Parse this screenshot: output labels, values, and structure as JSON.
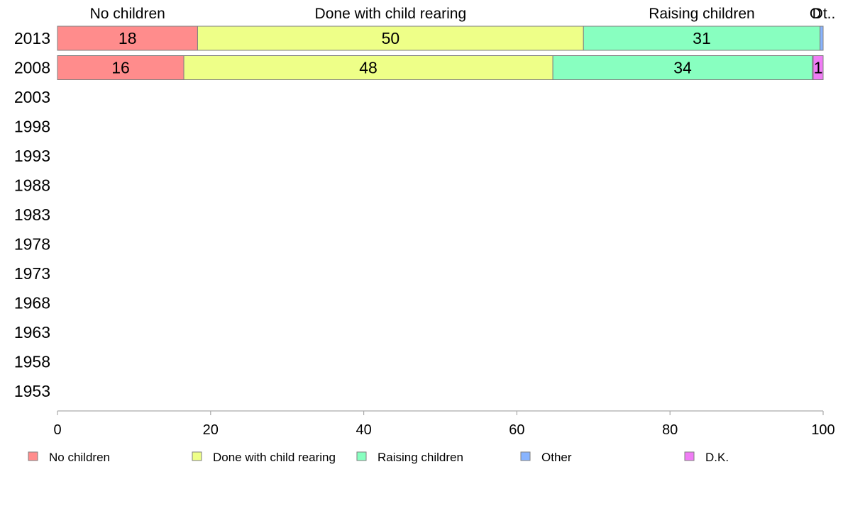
{
  "chart_data": {
    "type": "bar",
    "orientation": "horizontal",
    "stacked": true,
    "title": "",
    "xlabel": "",
    "ylabel": "",
    "xlim": [
      0,
      100
    ],
    "x_ticks": [
      0,
      20,
      40,
      60,
      80,
      100
    ],
    "categories": [
      "2013",
      "2008",
      "2003",
      "1998",
      "1993",
      "1988",
      "1983",
      "1978",
      "1973",
      "1968",
      "1963",
      "1958",
      "1953"
    ],
    "series": [
      {
        "name": "No children",
        "color": "#ff8c8c",
        "values": [
          18.3,
          16.5,
          null,
          null,
          null,
          null,
          null,
          null,
          null,
          null,
          null,
          null,
          null
        ],
        "labels": [
          "18",
          "16",
          "",
          "",
          "",
          "",
          "",
          "",
          "",
          "",
          "",
          "",
          ""
        ]
      },
      {
        "name": "Done with child rearing",
        "color": "#eeff88",
        "values": [
          50.4,
          48.2,
          null,
          null,
          null,
          null,
          null,
          null,
          null,
          null,
          null,
          null,
          null
        ],
        "labels": [
          "50",
          "48",
          "",
          "",
          "",
          "",
          "",
          "",
          "",
          "",
          "",
          "",
          ""
        ]
      },
      {
        "name": "Raising children",
        "color": "#88ffc0",
        "values": [
          30.9,
          33.9,
          null,
          null,
          null,
          null,
          null,
          null,
          null,
          null,
          null,
          null,
          null
        ],
        "labels": [
          "31",
          "34",
          "",
          "",
          "",
          "",
          "",
          "",
          "",
          "",
          "",
          "",
          ""
        ]
      },
      {
        "name": "Other",
        "color": "#88b4ff",
        "values": [
          0.4,
          0.1,
          null,
          null,
          null,
          null,
          null,
          null,
          null,
          null,
          null,
          null,
          null
        ],
        "labels": [
          "",
          "",
          "",
          "",
          "",
          "",
          "",
          "",
          "",
          "",
          "",
          "",
          ""
        ]
      },
      {
        "name": "D.K.",
        "color": "#f07cf5",
        "values": [
          0.0,
          1.3,
          null,
          null,
          null,
          null,
          null,
          null,
          null,
          null,
          null,
          null,
          null
        ],
        "labels": [
          "",
          "1",
          "",
          "",
          "",
          "",
          "",
          "",
          "",
          "",
          "",
          "",
          ""
        ]
      }
    ],
    "top_labels": [
      "No children",
      "Done with child rearing",
      "Raising children",
      "O",
      "Dt.."
    ],
    "legend": {
      "placement": "bottom",
      "entries": [
        "No children",
        "Done with child rearing",
        "Raising children",
        "Other",
        "D.K."
      ]
    },
    "grid": false
  }
}
